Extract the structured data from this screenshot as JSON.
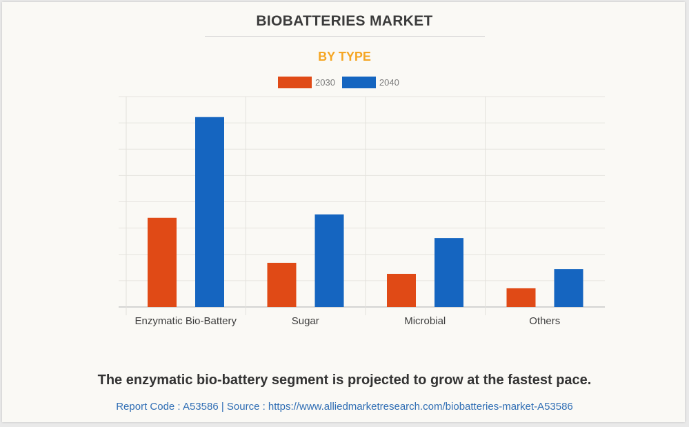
{
  "header": {
    "title": "BIOBATTERIES MARKET",
    "subtitle": "BY TYPE"
  },
  "colors": {
    "title": "#3b3b3b",
    "subtitle": "#f5a623",
    "series_2030": "#e04a16",
    "series_2040": "#1565c0",
    "source_link": "#2e6db4"
  },
  "chart_data": {
    "type": "bar",
    "title": "BIOBATTERIES MARKET",
    "subtitle": "BY TYPE",
    "xlabel": "",
    "ylabel": "",
    "categories": [
      "Enzymatic Bio-Battery",
      "Sugar",
      "Microbial",
      "Others"
    ],
    "series": [
      {
        "name": "2030",
        "values": [
          3.39,
          1.68,
          1.26,
          0.71
        ]
      },
      {
        "name": "2040",
        "values": [
          7.22,
          3.52,
          2.62,
          1.44
        ]
      }
    ],
    "ylim": [
      0,
      8
    ],
    "y_ticks_labeled": false,
    "y_gridlines": 8,
    "grid": true,
    "legend": "top-center",
    "value_units": "relative (gridline units; y-axis not labeled)"
  },
  "footer": {
    "caption": "The enzymatic bio-battery segment is projected to grow at the fastest pace.",
    "source": "Report Code : A53586  |  Source : https://www.alliedmarketresearch.com/biobatteries-market-A53586"
  }
}
